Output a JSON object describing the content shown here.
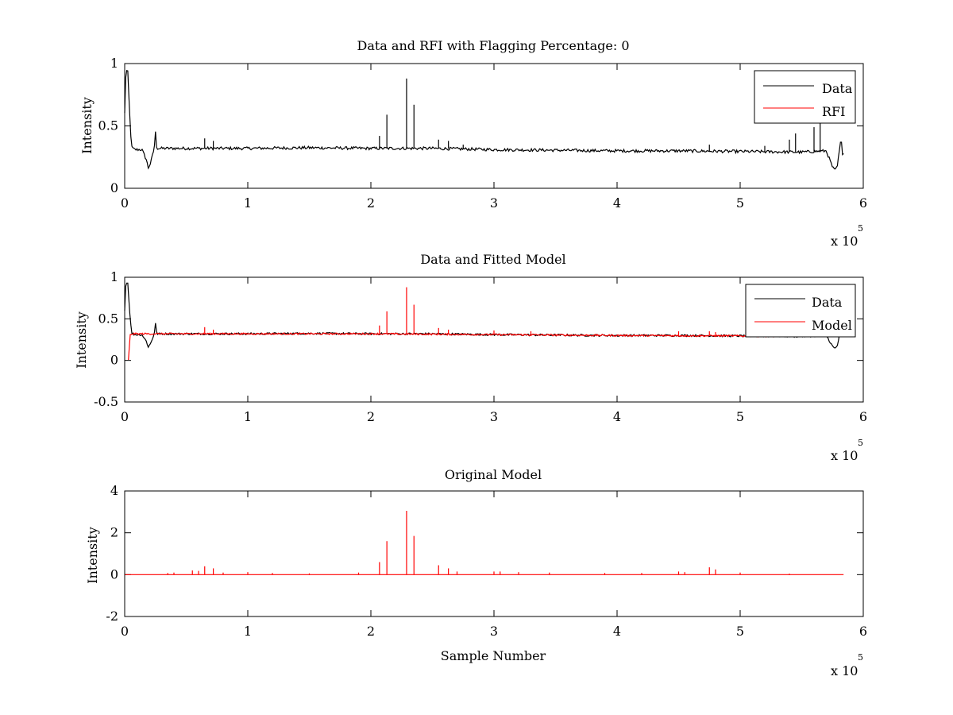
{
  "figure": {
    "background": "#ffffff",
    "axis_color": "#000000"
  },
  "chart_data": [
    {
      "type": "line",
      "title": "Data and RFI with Flagging Percentage: 0",
      "xlabel": "",
      "ylabel": "Intensity",
      "xlim": [
        0,
        6
      ],
      "ylim": [
        0,
        1
      ],
      "x_multiplier_label": "x 10",
      "x_multiplier_exponent": "5",
      "xticks": [
        0,
        1,
        2,
        3,
        4,
        5,
        6
      ],
      "xtick_labels": [
        "0",
        "1",
        "2",
        "3",
        "4",
        "5",
        "6"
      ],
      "yticks": [
        0,
        0.5,
        1
      ],
      "ytick_labels": [
        "0",
        "0.5",
        "1"
      ],
      "legend_position": "top-right",
      "series": [
        {
          "name": "Data",
          "color": "#000000",
          "kind": "baseline",
          "baseline": [
            [
              0.0,
              0.6
            ],
            [
              0.01,
              0.95
            ],
            [
              0.025,
              0.93
            ],
            [
              0.04,
              0.6
            ],
            [
              0.055,
              0.33
            ],
            [
              0.08,
              0.31
            ],
            [
              0.14,
              0.31
            ],
            [
              0.18,
              0.22
            ],
            [
              0.19,
              0.16
            ],
            [
              0.21,
              0.2
            ],
            [
              0.24,
              0.32
            ],
            [
              0.25,
              0.45
            ],
            [
              0.26,
              0.32
            ],
            [
              0.5,
              0.32
            ],
            [
              1.0,
              0.32
            ],
            [
              1.5,
              0.325
            ],
            [
              2.0,
              0.32
            ],
            [
              2.5,
              0.32
            ],
            [
              3.0,
              0.31
            ],
            [
              3.5,
              0.305
            ],
            [
              4.0,
              0.3
            ],
            [
              4.5,
              0.3
            ],
            [
              5.0,
              0.295
            ],
            [
              5.5,
              0.29
            ],
            [
              5.7,
              0.3
            ],
            [
              5.75,
              0.17
            ],
            [
              5.77,
              0.14
            ],
            [
              5.79,
              0.18
            ],
            [
              5.82,
              0.4
            ],
            [
              5.83,
              0.28
            ],
            [
              5.84,
              0.29
            ]
          ],
          "noise": 0.012,
          "spikes": [
            [
              0.65,
              0.4
            ],
            [
              0.72,
              0.38
            ],
            [
              2.07,
              0.42
            ],
            [
              2.13,
              0.59
            ],
            [
              2.29,
              0.88
            ],
            [
              2.35,
              0.67
            ],
            [
              2.55,
              0.39
            ],
            [
              2.63,
              0.38
            ],
            [
              2.75,
              0.35
            ],
            [
              4.75,
              0.35
            ],
            [
              5.2,
              0.34
            ],
            [
              5.4,
              0.39
            ],
            [
              5.45,
              0.44
            ],
            [
              5.6,
              0.49
            ],
            [
              5.65,
              0.52
            ]
          ]
        },
        {
          "name": "RFI",
          "color": "#ff0000",
          "kind": "none"
        }
      ]
    },
    {
      "type": "line",
      "title": "Data and Fitted Model",
      "xlabel": "",
      "ylabel": "Intensity",
      "xlim": [
        0,
        6
      ],
      "ylim": [
        -0.5,
        1
      ],
      "x_multiplier_label": "x 10",
      "x_multiplier_exponent": "5",
      "xticks": [
        0,
        1,
        2,
        3,
        4,
        5,
        6
      ],
      "xtick_labels": [
        "0",
        "1",
        "2",
        "3",
        "4",
        "5",
        "6"
      ],
      "yticks": [
        -0.5,
        0,
        0.5,
        1
      ],
      "ytick_labels": [
        "-0.5",
        "0",
        "0.5",
        "1"
      ],
      "legend_position": "top-right",
      "series": [
        {
          "name": "Data",
          "color": "#000000",
          "kind": "baseline",
          "baseline": [
            [
              0.0,
              0.6
            ],
            [
              0.01,
              0.95
            ],
            [
              0.025,
              0.93
            ],
            [
              0.04,
              0.6
            ],
            [
              0.055,
              0.33
            ],
            [
              0.08,
              0.31
            ],
            [
              0.14,
              0.31
            ],
            [
              0.18,
              0.22
            ],
            [
              0.19,
              0.16
            ],
            [
              0.21,
              0.2
            ],
            [
              0.24,
              0.32
            ],
            [
              0.25,
              0.45
            ],
            [
              0.26,
              0.32
            ],
            [
              0.5,
              0.32
            ],
            [
              1.0,
              0.32
            ],
            [
              1.5,
              0.325
            ],
            [
              2.0,
              0.32
            ],
            [
              2.5,
              0.32
            ],
            [
              3.0,
              0.31
            ],
            [
              3.5,
              0.305
            ],
            [
              4.0,
              0.3
            ],
            [
              4.5,
              0.3
            ],
            [
              5.0,
              0.295
            ],
            [
              5.5,
              0.29
            ],
            [
              5.7,
              0.3
            ],
            [
              5.75,
              0.17
            ],
            [
              5.77,
              0.14
            ],
            [
              5.79,
              0.18
            ],
            [
              5.82,
              0.4
            ],
            [
              5.83,
              0.28
            ],
            [
              5.84,
              0.29
            ]
          ],
          "noise": 0.012,
          "spikes": []
        },
        {
          "name": "Model",
          "color": "#ff0000",
          "kind": "baseline",
          "baseline": [
            [
              0.03,
              0.0
            ],
            [
              0.035,
              0.0
            ],
            [
              0.04,
              0.3
            ],
            [
              0.06,
              0.32
            ],
            [
              1.0,
              0.32
            ],
            [
              2.0,
              0.32
            ],
            [
              3.0,
              0.31
            ],
            [
              4.0,
              0.3
            ],
            [
              5.0,
              0.295
            ],
            [
              5.3,
              0.29
            ]
          ],
          "noise": 0.01,
          "spikes": [
            [
              0.65,
              0.4
            ],
            [
              0.72,
              0.37
            ],
            [
              2.07,
              0.42
            ],
            [
              2.13,
              0.59
            ],
            [
              2.29,
              0.88
            ],
            [
              2.35,
              0.67
            ],
            [
              2.55,
              0.39
            ],
            [
              2.63,
              0.37
            ],
            [
              3.0,
              0.36
            ],
            [
              3.3,
              0.35
            ],
            [
              4.5,
              0.35
            ],
            [
              4.75,
              0.35
            ],
            [
              4.8,
              0.34
            ]
          ]
        }
      ]
    },
    {
      "type": "line",
      "title": "Original Model",
      "xlabel": "Sample Number",
      "ylabel": "Intensity",
      "xlim": [
        0,
        6
      ],
      "ylim": [
        -2,
        4
      ],
      "x_multiplier_label": "x 10",
      "x_multiplier_exponent": "5",
      "xticks": [
        0,
        1,
        2,
        3,
        4,
        5,
        6
      ],
      "xtick_labels": [
        "0",
        "1",
        "2",
        "3",
        "4",
        "5",
        "6"
      ],
      "yticks": [
        -2,
        0,
        2,
        4
      ],
      "ytick_labels": [
        "-2",
        "0",
        "2",
        "4"
      ],
      "legend_position": "",
      "series": [
        {
          "name": "",
          "color": "#ff0000",
          "kind": "baseline",
          "baseline": [
            [
              0.0,
              0.0
            ],
            [
              5.84,
              0.0
            ]
          ],
          "noise": 0.0,
          "spikes": [
            [
              0.35,
              0.08
            ],
            [
              0.4,
              0.1
            ],
            [
              0.55,
              0.2
            ],
            [
              0.6,
              0.18
            ],
            [
              0.65,
              0.4
            ],
            [
              0.72,
              0.3
            ],
            [
              0.8,
              0.1
            ],
            [
              1.0,
              0.12
            ],
            [
              1.2,
              0.08
            ],
            [
              1.5,
              0.06
            ],
            [
              1.9,
              0.1
            ],
            [
              2.07,
              0.6
            ],
            [
              2.13,
              1.6
            ],
            [
              2.29,
              3.05
            ],
            [
              2.35,
              1.85
            ],
            [
              2.55,
              0.45
            ],
            [
              2.63,
              0.3
            ],
            [
              2.7,
              0.15
            ],
            [
              3.0,
              0.15
            ],
            [
              3.05,
              0.15
            ],
            [
              3.2,
              0.12
            ],
            [
              3.45,
              0.1
            ],
            [
              3.9,
              0.08
            ],
            [
              4.2,
              0.08
            ],
            [
              4.5,
              0.15
            ],
            [
              4.55,
              0.12
            ],
            [
              4.75,
              0.35
            ],
            [
              4.8,
              0.25
            ],
            [
              5.0,
              0.1
            ],
            [
              5.4,
              0.05
            ]
          ]
        }
      ]
    }
  ]
}
